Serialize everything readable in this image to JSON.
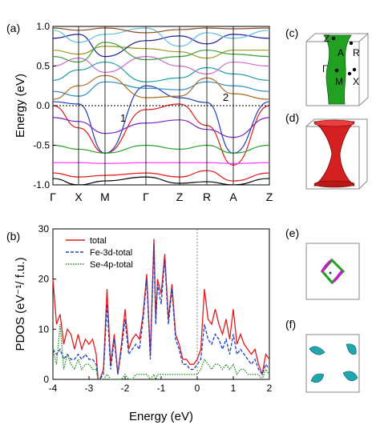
{
  "panel_labels": {
    "a": "(a)",
    "b": "(b)",
    "c": "(c)",
    "d": "(d)",
    "e": "(e)",
    "f": "(f)"
  },
  "band": {
    "ylabel": "Energy (eV)",
    "yticks": [
      "1.0",
      "0.5",
      "0.0",
      "-0.5",
      "-1.0"
    ],
    "kpoints": [
      "Γ",
      "X",
      "M",
      "Γ",
      "Z",
      "R",
      "A",
      "Z"
    ],
    "annotations": [
      "1",
      "2"
    ]
  },
  "bz": {
    "labels": [
      "Z",
      "A",
      "R",
      "Γ",
      "M",
      "X"
    ]
  },
  "chart_data": {
    "type": "line",
    "xlabel": "Energy (eV)",
    "ylabel": "PDOS (eV⁻¹/ f.u.)",
    "xlim": [
      -4,
      2
    ],
    "ylim": [
      0,
      30
    ],
    "xticks": [
      "-4",
      "-3",
      "-2",
      "-1",
      "0",
      "1",
      "2"
    ],
    "yticks": [
      "0",
      "10",
      "20",
      "30"
    ],
    "legend_position": "top-left",
    "series": [
      {
        "name": "total",
        "color": "#e41a1c",
        "style": "solid",
        "x": [
          -4,
          -3.9,
          -3.8,
          -3.7,
          -3.6,
          -3.5,
          -3.4,
          -3.3,
          -3.2,
          -3.1,
          -3.0,
          -2.9,
          -2.8,
          -2.75,
          -2.7,
          -2.6,
          -2.5,
          -2.4,
          -2.3,
          -2.2,
          -2.1,
          -2.0,
          -1.9,
          -1.8,
          -1.7,
          -1.6,
          -1.5,
          -1.4,
          -1.3,
          -1.2,
          -1.15,
          -1.1,
          -1.0,
          -0.9,
          -0.8,
          -0.7,
          -0.6,
          -0.5,
          -0.4,
          -0.3,
          -0.2,
          -0.1,
          0.0,
          0.1,
          0.2,
          0.3,
          0.4,
          0.5,
          0.6,
          0.7,
          0.8,
          0.9,
          1.0,
          1.1,
          1.2,
          1.3,
          1.4,
          1.5,
          1.6,
          1.7,
          1.8,
          1.9,
          2.0
        ],
        "y": [
          20,
          11,
          13,
          7,
          10,
          9,
          6,
          9,
          6,
          8,
          7,
          8,
          5,
          0,
          0,
          2,
          18,
          3,
          9,
          1,
          7,
          14,
          6,
          8,
          9,
          8,
          13,
          21,
          5,
          28,
          12,
          20,
          17,
          25,
          12,
          19,
          9,
          7,
          4,
          4,
          3,
          3,
          4,
          6,
          18,
          12,
          11,
          14,
          11,
          9,
          12,
          8,
          14,
          7,
          9,
          7,
          6,
          5,
          6,
          3,
          1,
          5,
          4
        ]
      },
      {
        "name": "Fe-3d-total",
        "color": "#1f3fbf",
        "style": "dashed",
        "x": [
          -4,
          -3.9,
          -3.8,
          -3.7,
          -3.6,
          -3.5,
          -3.4,
          -3.3,
          -3.2,
          -3.1,
          -3.0,
          -2.9,
          -2.8,
          -2.75,
          -2.7,
          -2.6,
          -2.5,
          -2.4,
          -2.3,
          -2.2,
          -2.1,
          -2.0,
          -1.9,
          -1.8,
          -1.7,
          -1.6,
          -1.5,
          -1.4,
          -1.3,
          -1.2,
          -1.15,
          -1.1,
          -1.0,
          -0.9,
          -0.8,
          -0.7,
          -0.6,
          -0.5,
          -0.4,
          -0.3,
          -0.2,
          -0.1,
          0.0,
          0.1,
          0.2,
          0.3,
          0.4,
          0.5,
          0.6,
          0.7,
          0.8,
          0.9,
          1.0,
          1.1,
          1.2,
          1.3,
          1.4,
          1.5,
          1.6,
          1.7,
          1.8,
          1.9,
          2.0
        ],
        "y": [
          6,
          5,
          6,
          4,
          5,
          4,
          4,
          5,
          4,
          5,
          4,
          4,
          3,
          0,
          0,
          1,
          15,
          2,
          8,
          1,
          6,
          12,
          5,
          6,
          7,
          6,
          12,
          20,
          4,
          27,
          11,
          19,
          15,
          24,
          11,
          18,
          8,
          6,
          3,
          3,
          2,
          2,
          3,
          4,
          11,
          8,
          7,
          9,
          8,
          6,
          8,
          5,
          9,
          5,
          6,
          5,
          4,
          3,
          4,
          2,
          1,
          3,
          2
        ]
      },
      {
        "name": "Se-4p-total",
        "color": "#1a8f1a",
        "style": "dotted",
        "x": [
          -4,
          -3.9,
          -3.8,
          -3.7,
          -3.6,
          -3.5,
          -3.4,
          -3.3,
          -3.2,
          -3.1,
          -3.0,
          -2.9,
          -2.8,
          -2.75,
          -2.7,
          -2.6,
          -2.5,
          -2.4,
          -2.3,
          -2.2,
          -2.1,
          -2.0,
          -1.9,
          -1.8,
          -1.7,
          -1.6,
          -1.5,
          -1.4,
          -1.3,
          -1.2,
          -1.15,
          -1.1,
          -1.0,
          -0.9,
          -0.8,
          -0.7,
          -0.6,
          -0.5,
          -0.4,
          -0.3,
          -0.2,
          -0.1,
          0.0,
          0.1,
          0.2,
          0.3,
          0.4,
          0.5,
          0.6,
          0.7,
          0.8,
          0.9,
          1.0,
          1.1,
          1.2,
          1.3,
          1.4,
          1.5,
          1.6,
          1.7,
          1.8,
          1.9,
          2.0
        ],
        "y": [
          6,
          3,
          11,
          2,
          5,
          3,
          2,
          4,
          2,
          3,
          3,
          2,
          2,
          0,
          0,
          0,
          1,
          0,
          0,
          0,
          0,
          1,
          0,
          0,
          1,
          1,
          1,
          1,
          0,
          1,
          0,
          1,
          1,
          1,
          1,
          1,
          1,
          1,
          1,
          1,
          1,
          1,
          1,
          2,
          4,
          3,
          2,
          3,
          3,
          2,
          3,
          2,
          3,
          1,
          2,
          2,
          1,
          1,
          1,
          1,
          0,
          2,
          1
        ]
      }
    ]
  }
}
